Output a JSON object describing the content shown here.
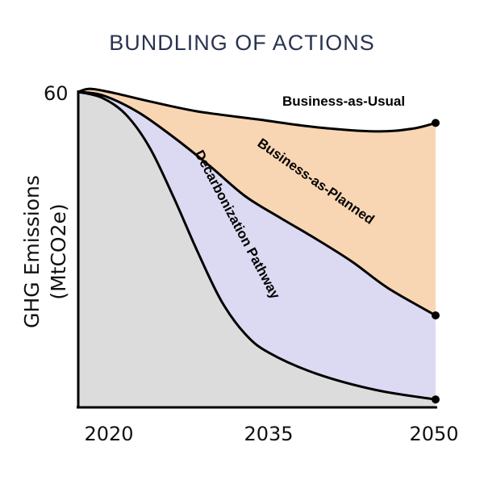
{
  "chart_data": {
    "type": "area",
    "title": "BUNDLING OF ACTIONS",
    "ylabel_line1": "GHG Emissions",
    "ylabel_line2": "(MtCO2e)",
    "y_tick": "60",
    "x_ticks": [
      "2020",
      "2035",
      "2050"
    ],
    "series": [
      {
        "name": "Business-as-Usual",
        "color": "#f9d6b3",
        "points": [
          [
            2020,
            60
          ],
          [
            2021,
            60.6
          ],
          [
            2023,
            59.8
          ],
          [
            2026,
            58.2
          ],
          [
            2030,
            56.3
          ],
          [
            2035,
            54.8
          ],
          [
            2040,
            53.3
          ],
          [
            2045,
            52.5
          ],
          [
            2048,
            53.0
          ],
          [
            2050,
            54.1
          ]
        ]
      },
      {
        "name": "Business-as-Planned",
        "color": "#dcdaf2",
        "points": [
          [
            2020,
            60
          ],
          [
            2022,
            59.4
          ],
          [
            2025,
            56.2
          ],
          [
            2028,
            51.4
          ],
          [
            2031,
            46.0
          ],
          [
            2034,
            40.2
          ],
          [
            2037,
            36.0
          ],
          [
            2040,
            32.0
          ],
          [
            2043,
            27.7
          ],
          [
            2046,
            22.7
          ],
          [
            2050,
            17.5
          ]
        ]
      },
      {
        "name": "Decarbonization Pathway",
        "color": "#dcdcdc",
        "points": [
          [
            2020,
            60
          ],
          [
            2022,
            58.9
          ],
          [
            2024,
            55.7
          ],
          [
            2026,
            49.4
          ],
          [
            2028,
            40.0
          ],
          [
            2030,
            29.7
          ],
          [
            2032,
            20.3
          ],
          [
            2034,
            14.0
          ],
          [
            2036,
            10.4
          ],
          [
            2040,
            6.4
          ],
          [
            2045,
            3.3
          ],
          [
            2050,
            1.5
          ]
        ]
      }
    ],
    "xlim": [
      2020,
      2050
    ],
    "ylim": [
      0,
      60
    ]
  }
}
